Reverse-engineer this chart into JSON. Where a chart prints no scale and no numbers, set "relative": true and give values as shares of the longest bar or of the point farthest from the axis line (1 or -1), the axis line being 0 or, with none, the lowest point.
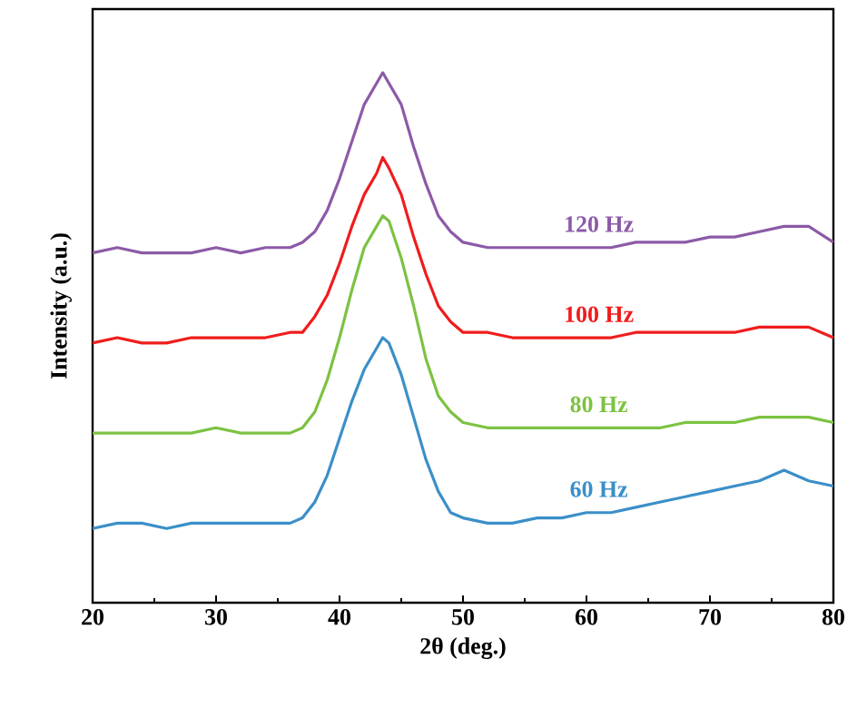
{
  "chart_data": {
    "type": "line",
    "xlabel": "2θ (deg.)",
    "ylabel": "Intensity (a.u.)",
    "relative": true,
    "tick_labels": "x",
    "xlim": [
      20,
      80
    ],
    "xticks": [
      20,
      30,
      40,
      50,
      60,
      70,
      80
    ],
    "x": [
      20,
      22,
      24,
      26,
      28,
      30,
      32,
      34,
      36,
      37,
      38,
      39,
      40,
      41,
      42,
      43,
      43.5,
      44,
      45,
      46,
      47,
      48,
      49,
      50,
      52,
      54,
      56,
      58,
      60,
      62,
      64,
      66,
      68,
      70,
      72,
      74,
      76,
      78,
      80
    ],
    "series": [
      {
        "name": "120 Hz",
        "color": "#8c5aa8",
        "values": [
          0.66,
          0.67,
          0.66,
          0.66,
          0.66,
          0.67,
          0.66,
          0.67,
          0.67,
          0.68,
          0.7,
          0.74,
          0.8,
          0.87,
          0.94,
          0.98,
          1.0,
          0.98,
          0.94,
          0.86,
          0.79,
          0.73,
          0.7,
          0.68,
          0.67,
          0.67,
          0.67,
          0.67,
          0.67,
          0.67,
          0.68,
          0.68,
          0.68,
          0.69,
          0.69,
          0.7,
          0.71,
          0.71,
          0.68
        ]
      },
      {
        "name": "100 Hz",
        "color": "#f01c1c",
        "values": [
          0.49,
          0.5,
          0.49,
          0.49,
          0.5,
          0.5,
          0.5,
          0.5,
          0.51,
          0.51,
          0.54,
          0.58,
          0.64,
          0.71,
          0.77,
          0.81,
          0.84,
          0.82,
          0.77,
          0.69,
          0.62,
          0.56,
          0.53,
          0.51,
          0.51,
          0.5,
          0.5,
          0.5,
          0.5,
          0.5,
          0.51,
          0.51,
          0.51,
          0.51,
          0.51,
          0.52,
          0.52,
          0.52,
          0.5
        ]
      },
      {
        "name": "80 Hz",
        "color": "#7cc242",
        "values": [
          0.32,
          0.32,
          0.32,
          0.32,
          0.32,
          0.33,
          0.32,
          0.32,
          0.32,
          0.33,
          0.36,
          0.42,
          0.5,
          0.59,
          0.67,
          0.71,
          0.73,
          0.72,
          0.65,
          0.56,
          0.46,
          0.39,
          0.36,
          0.34,
          0.33,
          0.33,
          0.33,
          0.33,
          0.33,
          0.33,
          0.33,
          0.33,
          0.34,
          0.34,
          0.34,
          0.35,
          0.35,
          0.35,
          0.34
        ]
      },
      {
        "name": "60 Hz",
        "color": "#3b8fc8",
        "values": [
          0.14,
          0.15,
          0.15,
          0.14,
          0.15,
          0.15,
          0.15,
          0.15,
          0.15,
          0.16,
          0.19,
          0.24,
          0.31,
          0.38,
          0.44,
          0.48,
          0.5,
          0.49,
          0.43,
          0.35,
          0.27,
          0.21,
          0.17,
          0.16,
          0.15,
          0.15,
          0.16,
          0.16,
          0.17,
          0.17,
          0.18,
          0.19,
          0.2,
          0.21,
          0.22,
          0.23,
          0.25,
          0.23,
          0.22
        ]
      }
    ]
  }
}
